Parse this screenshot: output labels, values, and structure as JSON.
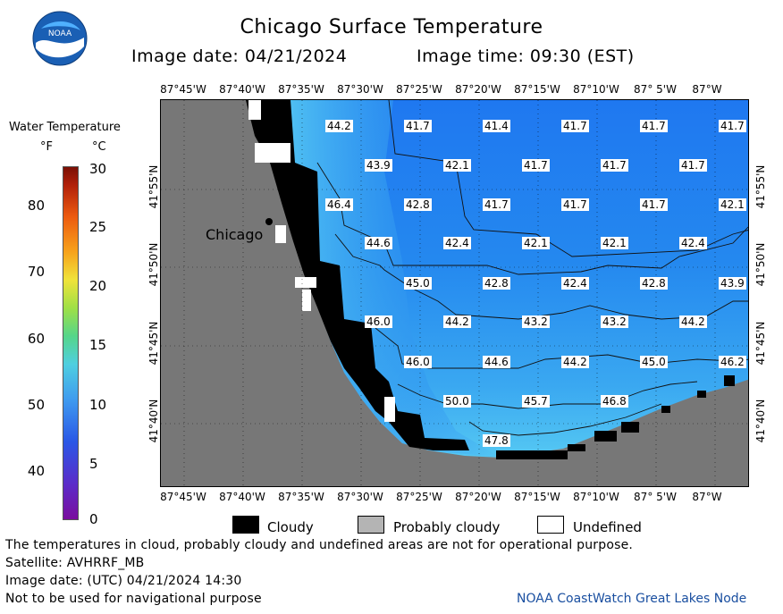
{
  "title": "Chicago Surface Temperature",
  "image_date": "Image date: 04/21/2024",
  "image_time": "Image time: 09:30 (EST)",
  "logo_text": "NOAA",
  "legend": {
    "title": "Water Temperature",
    "unit_f": "°F",
    "unit_c": "°C",
    "ticks_f": [
      "80",
      "70",
      "60",
      "50",
      "40"
    ],
    "ticks_c": [
      "30",
      "25",
      "20",
      "15",
      "10",
      "5",
      "0"
    ]
  },
  "longitudes": [
    "87°45'W",
    "87°40'W",
    "87°35'W",
    "87°30'W",
    "87°25'W",
    "87°20'W",
    "87°15'W",
    "87°10'W",
    "87° 5'W",
    "87°W"
  ],
  "latitudes": [
    "41°55'N",
    "41°50'N",
    "41°45'N",
    "41°40'N"
  ],
  "city": "Chicago",
  "temperatures": [
    "44.2",
    "41.7",
    "41.4",
    "41.7",
    "41.7",
    "41.7",
    "43.9",
    "42.1",
    "41.7",
    "41.7",
    "41.7",
    "46.4",
    "42.8",
    "41.7",
    "41.7",
    "41.7",
    "42.1",
    "44.6",
    "42.4",
    "42.1",
    "42.1",
    "42.4",
    "45.0",
    "42.8",
    "42.4",
    "42.8",
    "43.9",
    "46.0",
    "44.2",
    "43.2",
    "43.2",
    "44.2",
    "46.0",
    "44.6",
    "44.2",
    "45.0",
    "46.2",
    "50.0",
    "45.7",
    "46.8",
    "47.8"
  ],
  "key": {
    "cloudy": "Cloudy",
    "probably_cloudy": "Probably cloudy",
    "undefined": "Undefined"
  },
  "notes": {
    "disclaimer": "The temperatures in cloud, probably cloudy and undefined areas are not for operational purpose.",
    "satellite": "Satellite: AVHRRF_MB",
    "utc_date": "Image date: (UTC) 04/21/2024  14:30",
    "nav": "Not to be used for navigational purpose"
  },
  "credit": "NOAA CoastWatch Great Lakes Node",
  "colors": {
    "land": "#777777",
    "cloud": "#000000",
    "water_cold": "#1f78f0",
    "water_warm": "#4fc6f2"
  }
}
